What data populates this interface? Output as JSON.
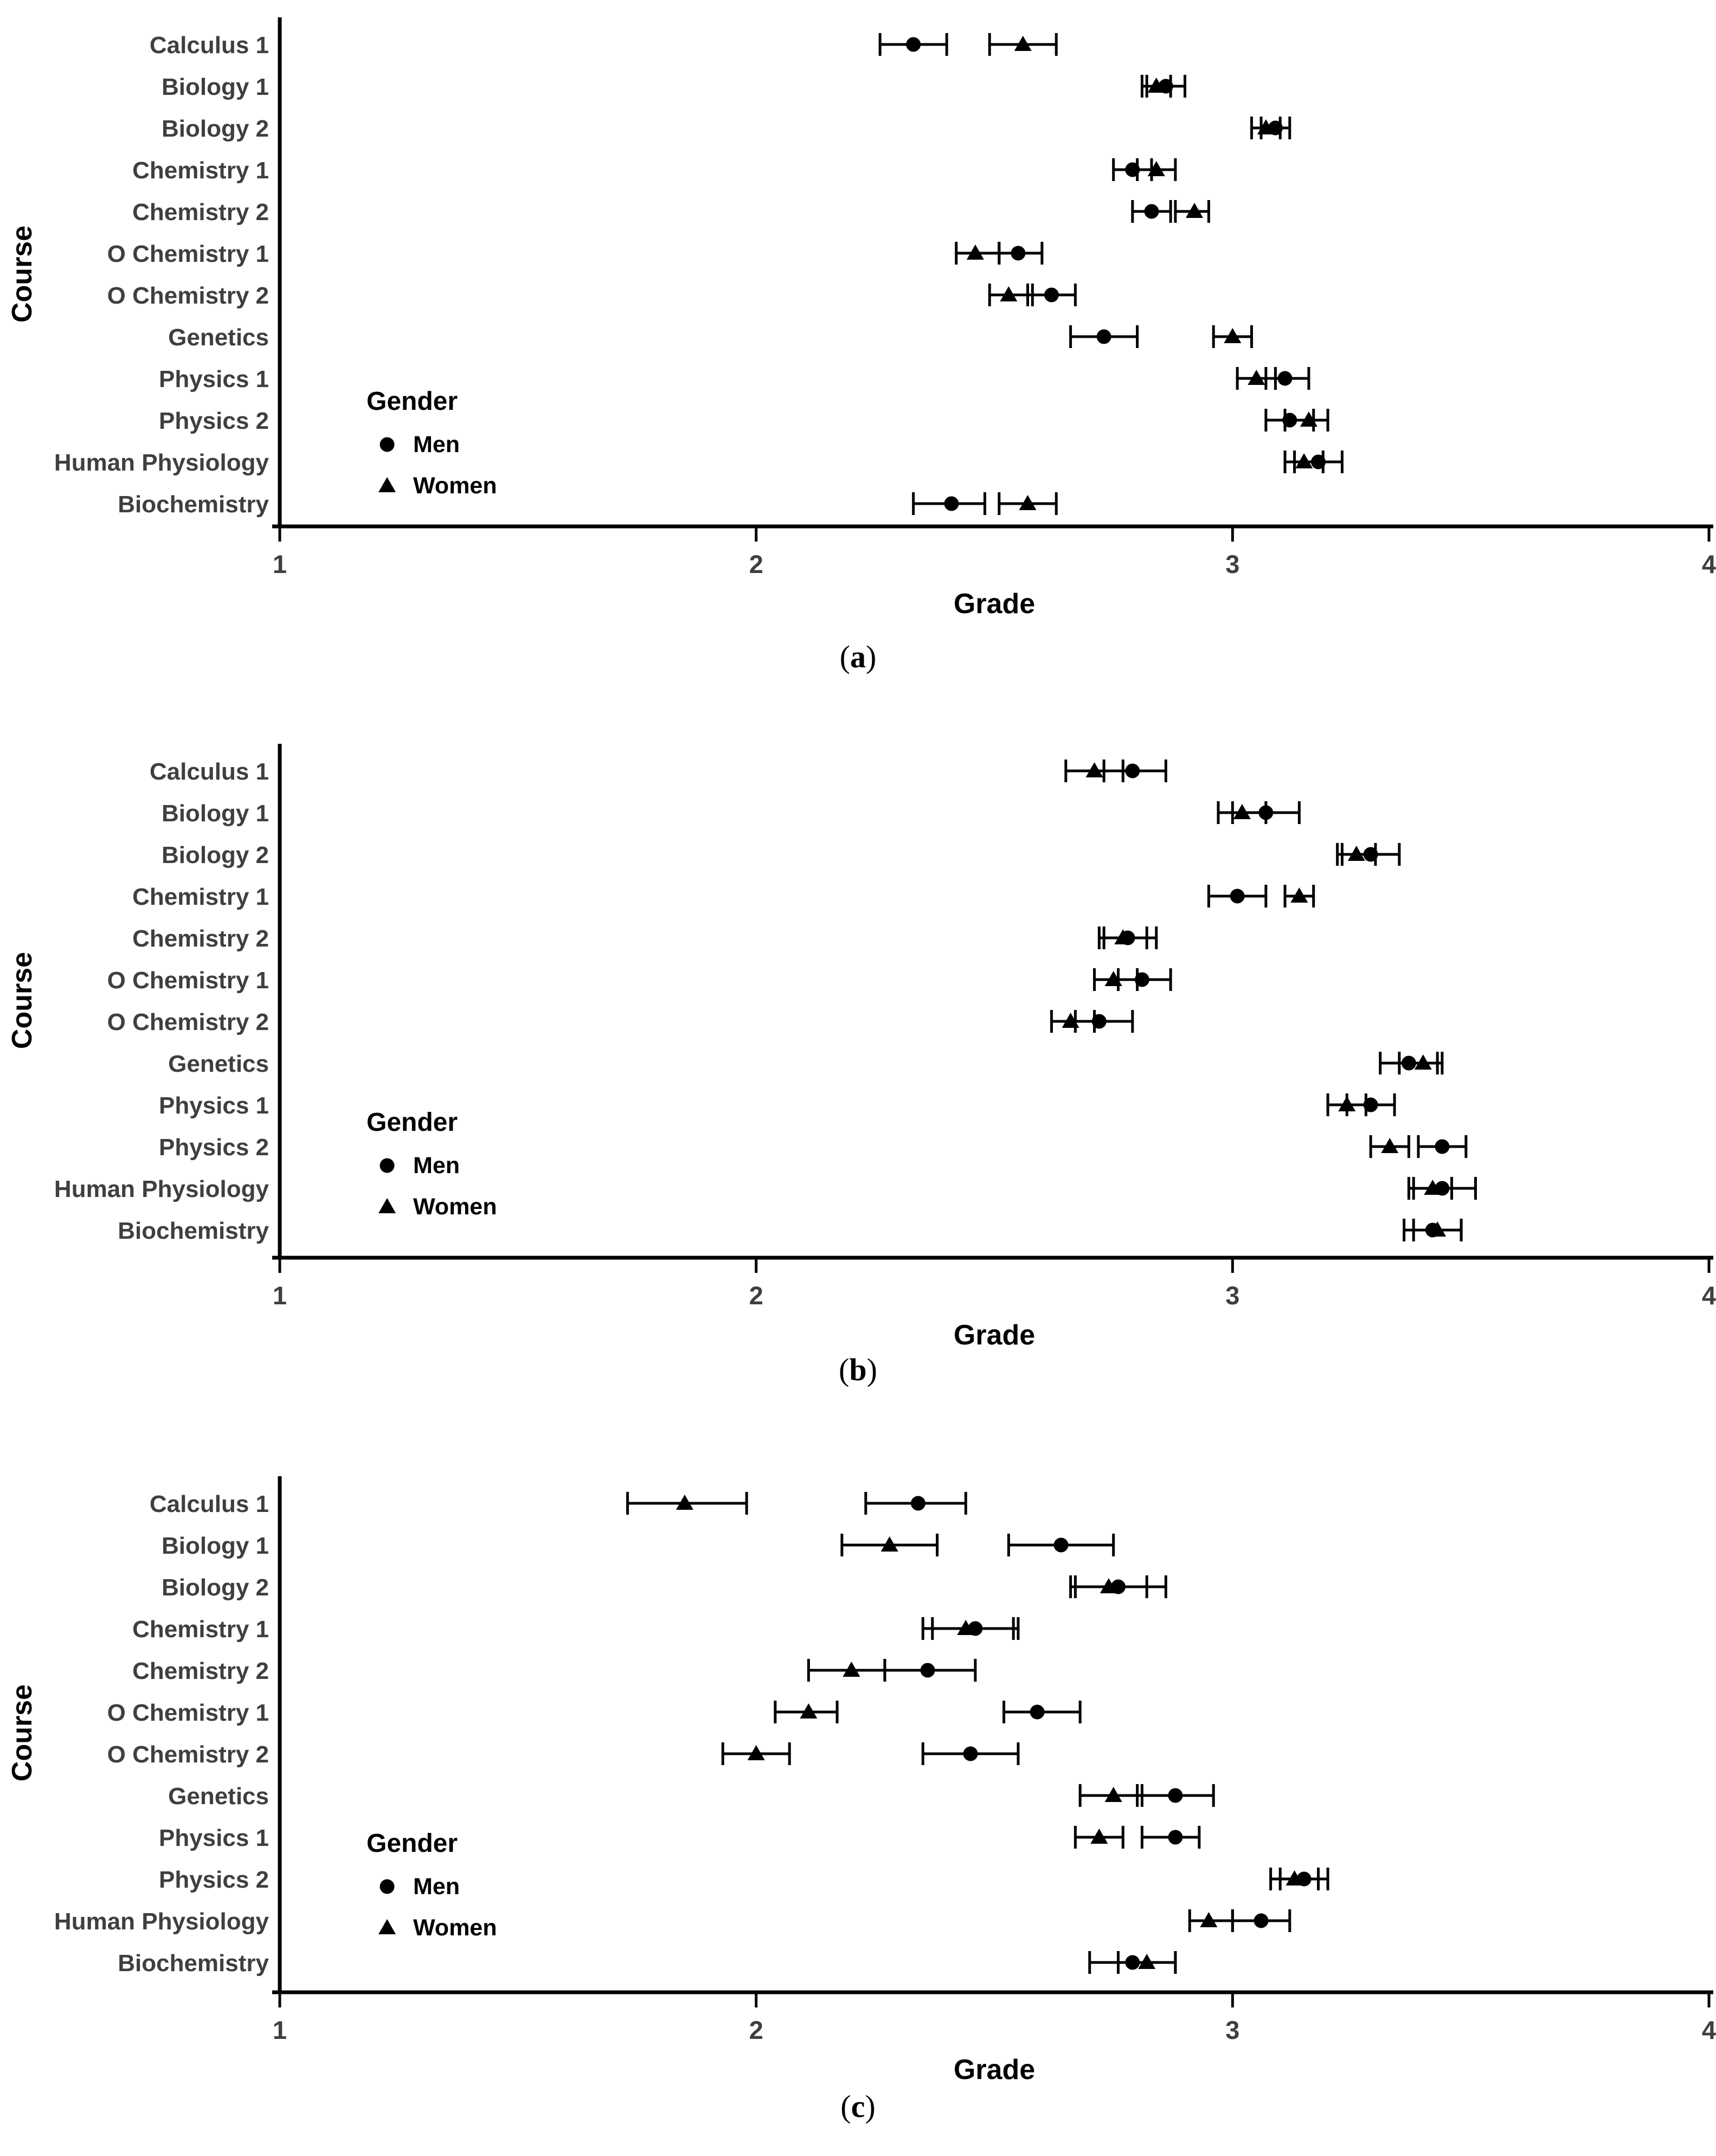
{
  "figure": {
    "xlabel": "Grade",
    "ylabel": "Course",
    "xmin": 1,
    "xmax": 4,
    "xticks": [
      "1",
      "2",
      "3",
      "4"
    ],
    "courses": [
      "Calculus 1",
      "Biology 1",
      "Biology 2",
      "Chemistry 1",
      "Chemistry 2",
      "O Chemistry 1",
      "O Chemistry 2",
      "Genetics",
      "Physics 1",
      "Physics 2",
      "Human Physiology",
      "Biochemistry"
    ],
    "legend": {
      "title": "Gender",
      "items": [
        {
          "label": "Men",
          "marker": "circle-icon"
        },
        {
          "label": "Women",
          "marker": "triangle-icon"
        }
      ]
    },
    "colors": {
      "marker": "#000000",
      "axis_line": "#000000",
      "axis_text": "#3f3f3f",
      "title_text": "#000000"
    }
  },
  "chart_data": [
    {
      "type": "scatter",
      "caption": "(a)",
      "caption_open": "(",
      "caption_letter": "a",
      "caption_close": ")",
      "orientation": "horizontal",
      "xlabel": "Grade",
      "ylabel": "Course",
      "xlim": [
        1,
        4
      ],
      "grid": false,
      "legend_position": "inside-lower-left",
      "categories": [
        "Calculus 1",
        "Biology 1",
        "Biology 2",
        "Chemistry 1",
        "Chemistry 2",
        "O Chemistry 1",
        "O Chemistry 2",
        "Genetics",
        "Physics 1",
        "Physics 2",
        "Human Physiology",
        "Biochemistry"
      ],
      "series": [
        {
          "name": "Men",
          "marker": "circle",
          "x": [
            2.33,
            2.86,
            3.09,
            2.79,
            2.83,
            2.55,
            2.62,
            2.73,
            3.11,
            3.12,
            3.18,
            2.41
          ],
          "err_lo": [
            2.26,
            2.82,
            3.06,
            2.75,
            2.79,
            2.51,
            2.57,
            2.66,
            3.07,
            3.07,
            3.13,
            2.33
          ],
          "err_hi": [
            2.4,
            2.9,
            3.12,
            2.83,
            2.87,
            2.6,
            2.67,
            2.8,
            3.16,
            3.17,
            3.23,
            2.48
          ]
        },
        {
          "name": "Women",
          "marker": "triangle",
          "x": [
            2.56,
            2.84,
            3.07,
            2.84,
            2.92,
            2.46,
            2.53,
            3.0,
            3.05,
            3.16,
            3.15,
            2.57
          ],
          "err_lo": [
            2.49,
            2.81,
            3.04,
            2.8,
            2.88,
            2.42,
            2.49,
            2.96,
            3.01,
            3.11,
            3.11,
            2.51
          ],
          "err_hi": [
            2.63,
            2.87,
            3.1,
            2.88,
            2.95,
            2.51,
            2.58,
            3.04,
            3.09,
            3.2,
            3.19,
            2.63
          ]
        }
      ]
    },
    {
      "type": "scatter",
      "caption": "(b)",
      "caption_open": "(",
      "caption_letter": "b",
      "caption_close": ")",
      "orientation": "horizontal",
      "xlabel": "Grade",
      "ylabel": "Course",
      "xlim": [
        1,
        4
      ],
      "grid": false,
      "legend_position": "inside-lower-left",
      "categories": [
        "Calculus 1",
        "Biology 1",
        "Biology 2",
        "Chemistry 1",
        "Chemistry 2",
        "O Chemistry 1",
        "O Chemistry 2",
        "Genetics",
        "Physics 1",
        "Physics 2",
        "Human Physiology",
        "Biochemistry"
      ],
      "series": [
        {
          "name": "Men",
          "marker": "circle",
          "x": [
            2.79,
            3.07,
            3.29,
            3.01,
            2.78,
            2.81,
            2.72,
            3.37,
            3.29,
            3.44,
            3.44,
            3.42
          ],
          "err_lo": [
            2.73,
            3.0,
            3.23,
            2.95,
            2.73,
            2.76,
            2.67,
            3.31,
            3.24,
            3.39,
            3.38,
            3.36
          ],
          "err_hi": [
            2.86,
            3.14,
            3.35,
            3.07,
            2.84,
            2.87,
            2.79,
            3.43,
            3.34,
            3.49,
            3.51,
            3.48
          ]
        },
        {
          "name": "Women",
          "marker": "triangle",
          "x": [
            2.71,
            3.02,
            3.26,
            3.14,
            2.77,
            2.75,
            2.66,
            3.4,
            3.24,
            3.33,
            3.42,
            3.43
          ],
          "err_lo": [
            2.65,
            2.97,
            3.22,
            3.11,
            2.72,
            2.71,
            2.62,
            3.35,
            3.2,
            3.29,
            3.37,
            3.38
          ],
          "err_hi": [
            2.77,
            3.07,
            3.3,
            3.17,
            2.82,
            2.8,
            2.71,
            3.44,
            3.28,
            3.37,
            3.46,
            3.48
          ]
        }
      ]
    },
    {
      "type": "scatter",
      "caption": "(c)",
      "caption_open": "(",
      "caption_letter": "c",
      "caption_close": ")",
      "orientation": "horizontal",
      "xlabel": "Grade",
      "ylabel": "Course",
      "xlim": [
        1,
        4
      ],
      "grid": false,
      "legend_position": "inside-lower-left",
      "categories": [
        "Calculus 1",
        "Biology 1",
        "Biology 2",
        "Chemistry 1",
        "Chemistry 2",
        "O Chemistry 1",
        "O Chemistry 2",
        "Genetics",
        "Physics 1",
        "Physics 2",
        "Human Physiology",
        "Biochemistry"
      ],
      "series": [
        {
          "name": "Men",
          "marker": "circle",
          "x": [
            2.34,
            2.64,
            2.76,
            2.46,
            2.36,
            2.59,
            2.45,
            2.88,
            2.88,
            3.15,
            3.06,
            2.79
          ],
          "err_lo": [
            2.23,
            2.53,
            2.67,
            2.37,
            2.27,
            2.52,
            2.35,
            2.8,
            2.81,
            3.1,
            3.0,
            2.7
          ],
          "err_hi": [
            2.44,
            2.75,
            2.86,
            2.55,
            2.46,
            2.68,
            2.55,
            2.96,
            2.93,
            3.2,
            3.12,
            2.88
          ]
        },
        {
          "name": "Women",
          "marker": "triangle",
          "x": [
            1.85,
            2.28,
            2.74,
            2.44,
            2.2,
            2.11,
            2.0,
            2.75,
            2.72,
            3.13,
            2.95,
            2.82
          ],
          "err_lo": [
            1.73,
            2.18,
            2.66,
            2.35,
            2.11,
            2.04,
            1.93,
            2.68,
            2.67,
            3.08,
            2.91,
            2.76
          ],
          "err_hi": [
            1.98,
            2.38,
            2.82,
            2.54,
            2.27,
            2.17,
            2.07,
            2.81,
            2.77,
            3.18,
            3.0,
            2.88
          ]
        }
      ]
    }
  ]
}
